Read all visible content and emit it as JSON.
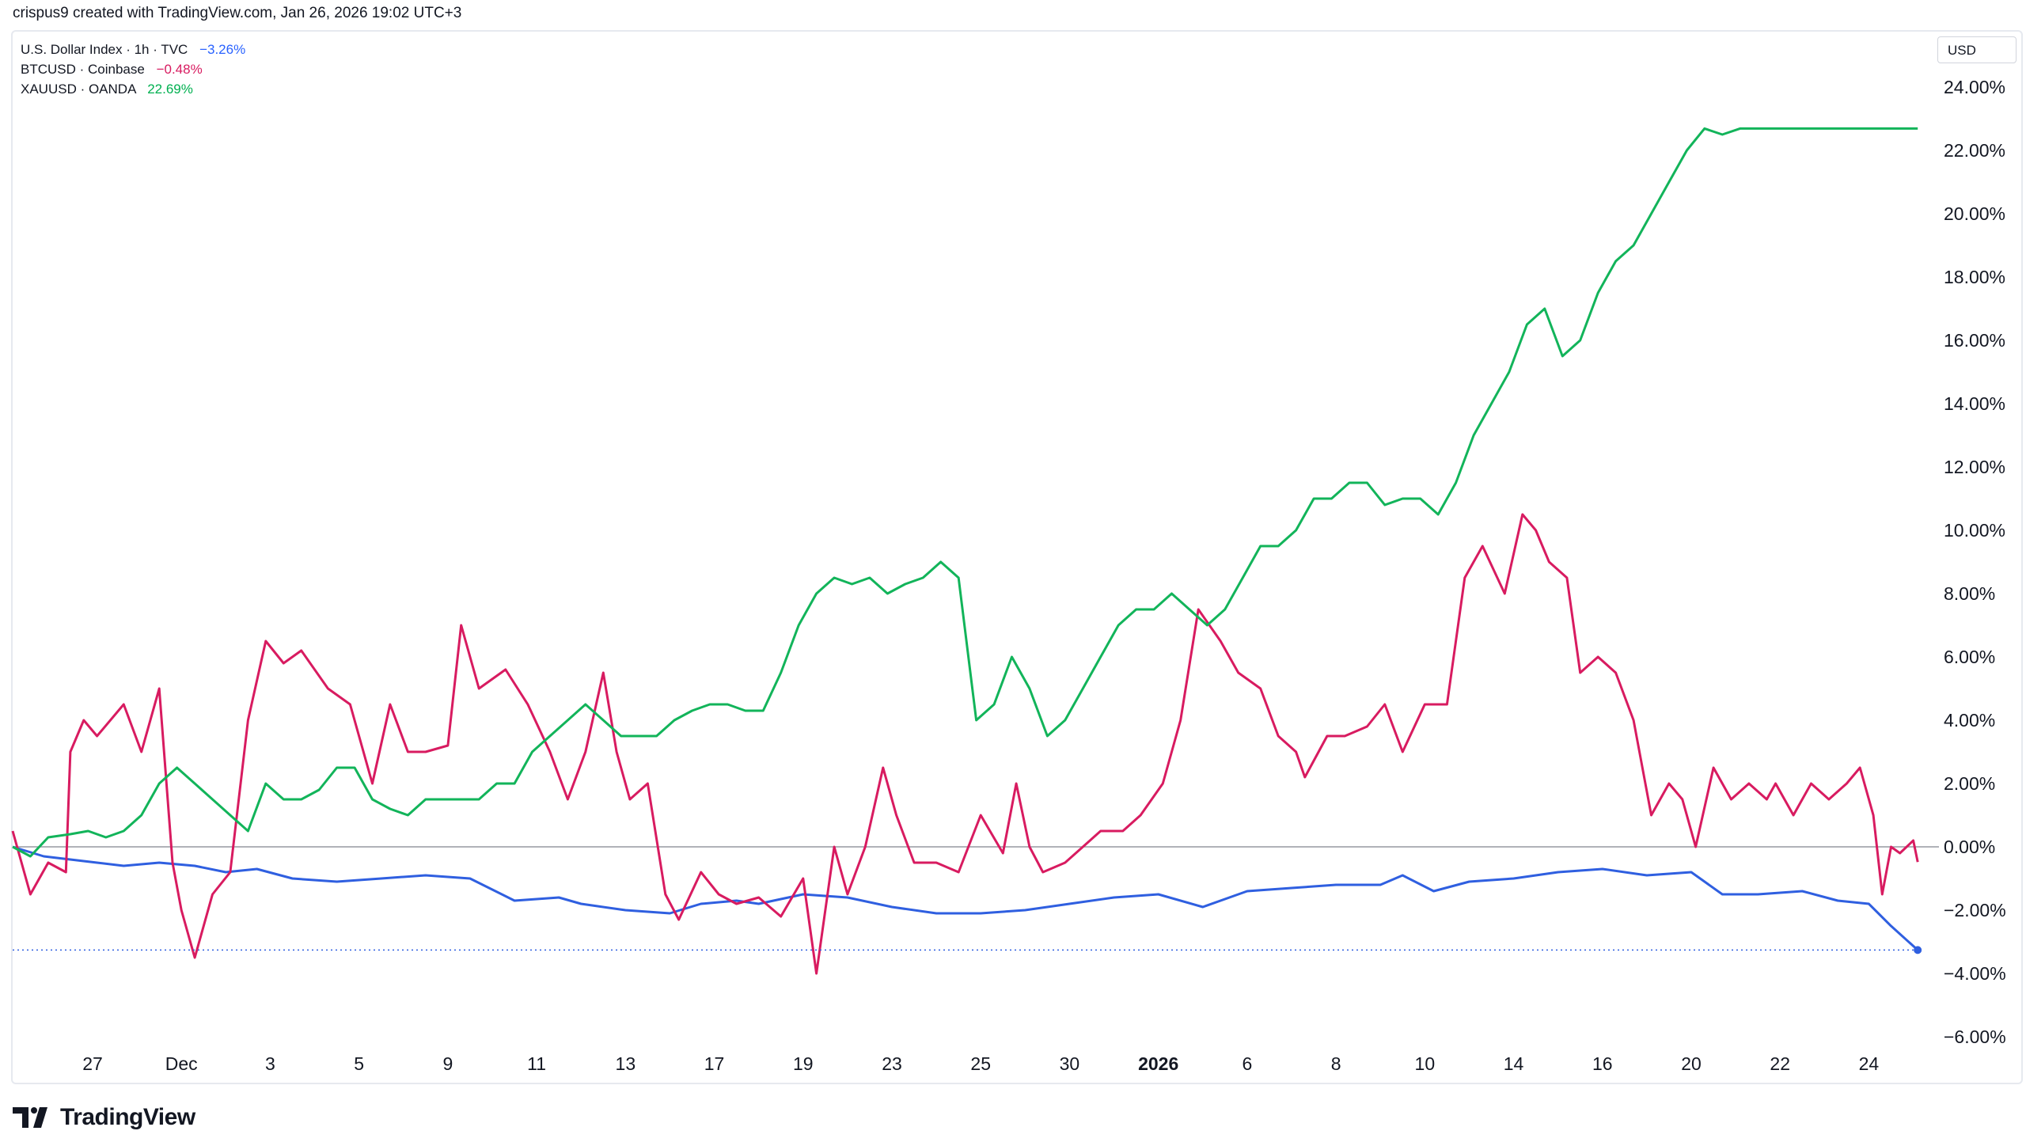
{
  "header": {
    "attribution": "crispus9 created with TradingView.com, Jan 26, 2026 19:02 UTC+3"
  },
  "legend": [
    {
      "symbol": "U.S. Dollar Index · 1h · TVC",
      "change": "−3.26%",
      "color": "#2962ff"
    },
    {
      "symbol": "BTCUSD · Coinbase",
      "change": "−0.48%",
      "color": "#d81b60"
    },
    {
      "symbol": "XAUUSD · OANDA",
      "change": "22.69%",
      "color": "#00b050"
    }
  ],
  "price_scale_label": "USD",
  "brand": {
    "name": "TradingView"
  },
  "colors": {
    "dxy": "#2f5fe0",
    "btc": "#d81b60",
    "gold": "#12b45a",
    "zero_line": "#9598a1"
  },
  "chart_data": {
    "type": "line",
    "ylabel": "",
    "y_unit": "%",
    "ylim": [
      -6.5,
      24.5
    ],
    "y_ticks": [
      "24.00%",
      "22.00%",
      "20.00%",
      "18.00%",
      "16.00%",
      "14.00%",
      "12.00%",
      "10.00%",
      "8.00%",
      "6.00%",
      "4.00%",
      "2.00%",
      "0.00%",
      "−2.00%",
      "−4.00%",
      "−6.00%"
    ],
    "y_tick_values": [
      24,
      22,
      20,
      18,
      16,
      14,
      12,
      10,
      8,
      6,
      4,
      2,
      0,
      -2,
      -4,
      -6
    ],
    "x_ticks": [
      "27",
      "Dec",
      "3",
      "5",
      "9",
      "11",
      "13",
      "17",
      "19",
      "23",
      "25",
      "30",
      "2026",
      "6",
      "8",
      "10",
      "14",
      "16",
      "20",
      "22",
      "24"
    ],
    "x_tick_index": [
      0.5,
      2.5,
      4.5,
      6.5,
      8.5,
      10.5,
      12.5,
      14.5,
      16.5,
      18.5,
      20.5,
      22.5,
      24.5,
      26.5,
      28.5,
      30.5,
      32.5,
      34.5,
      36.5,
      38.5,
      40.5
    ],
    "x_bold_ticks": [
      "2026"
    ],
    "x_index_range": [
      -1.3,
      41.9
    ],
    "series": [
      {
        "name": "U.S. Dollar Index · 1h · TVC",
        "x": [
          -1.3,
          -0.6,
          0.0,
          0.6,
          1.2,
          2.0,
          2.8,
          3.5,
          4.2,
          5.0,
          6.0,
          7.0,
          8.0,
          9.0,
          10.0,
          11.0,
          11.5,
          12.5,
          13.5,
          14.2,
          15.0,
          15.5,
          16.5,
          17.5,
          18.5,
          19.5,
          20.5,
          21.5,
          22.5,
          23.5,
          24.5,
          25.5,
          26.5,
          27.5,
          28.5,
          29.5,
          30.0,
          30.7,
          31.5,
          32.5,
          33.5,
          34.5,
          35.5,
          36.5,
          37.2,
          38.0,
          39.0,
          39.8,
          40.5,
          41.0,
          41.6
        ],
        "values": [
          0.0,
          -0.3,
          -0.4,
          -0.5,
          -0.6,
          -0.5,
          -0.6,
          -0.8,
          -0.7,
          -1.0,
          -1.1,
          -1.0,
          -0.9,
          -1.0,
          -1.7,
          -1.6,
          -1.8,
          -2.0,
          -2.1,
          -1.8,
          -1.7,
          -1.8,
          -1.5,
          -1.6,
          -1.9,
          -2.1,
          -2.1,
          -2.0,
          -1.8,
          -1.6,
          -1.5,
          -1.9,
          -1.4,
          -1.3,
          -1.2,
          -1.2,
          -0.9,
          -1.4,
          -1.1,
          -1.0,
          -0.8,
          -0.7,
          -0.9,
          -0.8,
          -1.5,
          -1.5,
          -1.4,
          -1.7,
          -1.8,
          -2.5,
          -3.26
        ]
      },
      {
        "name": "BTCUSD · Coinbase",
        "x": [
          -1.3,
          -0.9,
          -0.5,
          -0.1,
          0.0,
          0.3,
          0.6,
          1.2,
          1.6,
          2.0,
          2.3,
          2.5,
          2.8,
          3.2,
          3.6,
          4.0,
          4.4,
          4.8,
          5.2,
          5.8,
          6.3,
          6.8,
          7.2,
          7.6,
          8.0,
          8.5,
          8.8,
          9.2,
          9.8,
          10.3,
          10.8,
          11.2,
          11.6,
          12.0,
          12.3,
          12.6,
          13.0,
          13.4,
          13.7,
          14.2,
          14.6,
          15.0,
          15.5,
          16.0,
          16.5,
          16.8,
          17.2,
          17.5,
          17.9,
          18.3,
          18.6,
          19.0,
          19.5,
          20.0,
          20.5,
          21.0,
          21.3,
          21.6,
          21.9,
          22.4,
          22.8,
          23.2,
          23.7,
          24.1,
          24.6,
          25.0,
          25.4,
          25.9,
          26.3,
          26.8,
          27.2,
          27.6,
          27.8,
          28.3,
          28.7,
          29.2,
          29.6,
          30.0,
          30.5,
          31.0,
          31.4,
          31.8,
          32.3,
          32.7,
          33.0,
          33.3,
          33.7,
          34.0,
          34.4,
          34.8,
          35.2,
          35.6,
          36.0,
          36.3,
          36.6,
          37.0,
          37.4,
          37.8,
          38.2,
          38.4,
          38.8,
          39.2,
          39.6,
          40.0,
          40.3,
          40.6,
          40.8,
          41.0,
          41.2,
          41.5,
          41.6
        ],
        "values": [
          0.5,
          -1.5,
          -0.5,
          -0.8,
          3.0,
          4.0,
          3.5,
          4.5,
          3.0,
          5.0,
          -0.5,
          -2.0,
          -3.5,
          -1.5,
          -0.8,
          4.0,
          6.5,
          5.8,
          6.2,
          5.0,
          4.5,
          2.0,
          4.5,
          3.0,
          3.0,
          3.2,
          7.0,
          5.0,
          5.6,
          4.5,
          3.0,
          1.5,
          3.0,
          5.5,
          3.0,
          1.5,
          2.0,
          -1.5,
          -2.3,
          -0.8,
          -1.5,
          -1.8,
          -1.6,
          -2.2,
          -1.0,
          -4.0,
          0.0,
          -1.5,
          0.0,
          2.5,
          1.0,
          -0.5,
          -0.5,
          -0.8,
          1.0,
          -0.2,
          2.0,
          0.0,
          -0.8,
          -0.5,
          0.0,
          0.5,
          0.5,
          1.0,
          2.0,
          4.0,
          7.5,
          6.5,
          5.5,
          5.0,
          3.5,
          3.0,
          2.2,
          3.5,
          3.5,
          3.8,
          4.5,
          3.0,
          4.5,
          4.5,
          8.5,
          9.5,
          8.0,
          10.5,
          10.0,
          9.0,
          8.5,
          5.5,
          6.0,
          5.5,
          4.0,
          1.0,
          2.0,
          1.5,
          0.0,
          2.5,
          1.5,
          2.0,
          1.5,
          2.0,
          1.0,
          2.0,
          1.5,
          2.0,
          2.5,
          1.0,
          -1.5,
          0.0,
          -0.2,
          0.2,
          -0.48
        ]
      },
      {
        "name": "XAUUSD · OANDA",
        "x": [
          -1.3,
          -0.9,
          -0.5,
          0.0,
          0.4,
          0.8,
          1.2,
          1.6,
          2.0,
          2.4,
          2.8,
          3.2,
          3.6,
          4.0,
          4.4,
          4.8,
          5.2,
          5.6,
          6.0,
          6.4,
          6.8,
          7.2,
          7.6,
          8.0,
          8.4,
          8.8,
          9.2,
          9.6,
          10.0,
          10.4,
          10.8,
          11.2,
          11.6,
          12.0,
          12.4,
          12.8,
          13.2,
          13.6,
          14.0,
          14.4,
          14.8,
          15.2,
          15.6,
          16.0,
          16.4,
          16.8,
          17.2,
          17.6,
          18.0,
          18.4,
          18.8,
          19.2,
          19.6,
          20.0,
          20.4,
          20.8,
          21.2,
          21.6,
          22.0,
          22.4,
          22.8,
          23.2,
          23.6,
          24.0,
          24.4,
          24.8,
          25.2,
          25.6,
          26.0,
          26.4,
          26.8,
          27.2,
          27.6,
          28.0,
          28.4,
          28.8,
          29.2,
          29.6,
          30.0,
          30.4,
          30.8,
          31.2,
          31.6,
          32.0,
          32.4,
          32.8,
          33.2,
          33.6,
          34.0,
          34.4,
          34.8,
          35.2,
          35.6,
          36.0,
          36.4,
          36.8,
          37.2,
          37.6,
          38.0,
          38.4,
          38.8,
          39.2,
          39.6,
          40.0,
          40.4,
          40.8,
          41.2,
          41.6
        ],
        "values": [
          0.0,
          -0.3,
          0.3,
          0.4,
          0.5,
          0.3,
          0.5,
          1.0,
          2.0,
          2.5,
          2.0,
          1.5,
          1.0,
          0.5,
          2.0,
          1.5,
          1.5,
          1.8,
          2.5,
          2.5,
          1.5,
          1.2,
          1.0,
          1.5,
          1.5,
          1.5,
          1.5,
          2.0,
          2.0,
          3.0,
          3.5,
          4.0,
          4.5,
          4.0,
          3.5,
          3.5,
          3.5,
          4.0,
          4.3,
          4.5,
          4.5,
          4.3,
          4.3,
          5.5,
          7.0,
          8.0,
          8.5,
          8.3,
          8.5,
          8.0,
          8.3,
          8.5,
          9.0,
          8.5,
          4.0,
          4.5,
          6.0,
          5.0,
          3.5,
          4.0,
          5.0,
          6.0,
          7.0,
          7.5,
          7.5,
          8.0,
          7.5,
          7.0,
          7.5,
          8.5,
          9.5,
          9.5,
          10.0,
          11.0,
          11.0,
          11.5,
          11.5,
          10.8,
          11.0,
          11.0,
          10.5,
          11.5,
          13.0,
          14.0,
          15.0,
          16.5,
          17.0,
          15.5,
          16.0,
          17.5,
          18.5,
          19.0,
          20.0,
          21.0,
          22.0,
          22.69,
          22.5,
          22.69,
          22.69,
          22.69,
          22.69,
          22.69,
          22.69,
          22.69,
          22.69,
          22.69,
          22.69,
          22.69
        ]
      }
    ],
    "grid": false,
    "zero_line": true
  }
}
